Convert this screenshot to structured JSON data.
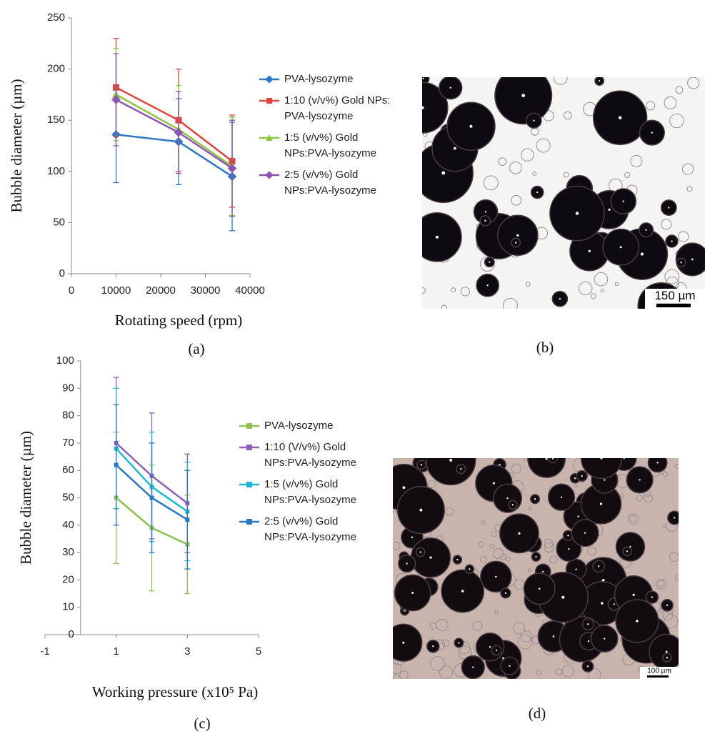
{
  "chart_data": [
    {
      "type": "line",
      "x_label": "Rotating speed (rpm)",
      "y_label": "Bubble diameter (µm)",
      "panel": "(a)",
      "x": [
        10000,
        24000,
        36000
      ],
      "xlim": [
        0,
        40000
      ],
      "xticks": [
        0,
        10000,
        20000,
        30000,
        40000
      ],
      "ylim": [
        0,
        250
      ],
      "yticks": [
        0,
        50,
        100,
        150,
        200,
        250
      ],
      "grid": false,
      "series": [
        {
          "name": "PVA-lysozyme",
          "color": "#2e75c4",
          "marker": "diamond",
          "values": [
            136,
            129,
            95
          ],
          "errors": [
            47,
            42,
            53
          ]
        },
        {
          "name": "1:10 (v/v%) Gold NPs: PVA-lysozyme",
          "color": "#e0443c",
          "marker": "square",
          "values": [
            182,
            150,
            110
          ],
          "errors": [
            48,
            50,
            45
          ]
        },
        {
          "name": "1:5 (v/v%) Gold NPs:PVA-lysozyme",
          "color": "#8cc63f",
          "marker": "triangle",
          "values": [
            175,
            141,
            105
          ],
          "errors": [
            45,
            43,
            48
          ]
        },
        {
          "name": "2:5 (v/v%) Gold NPs:PVA-lysozyme",
          "color": "#8b55b0",
          "marker": "diamond",
          "values": [
            170,
            138,
            103
          ],
          "errors": [
            45,
            40,
            47
          ]
        }
      ]
    },
    {
      "type": "line",
      "x_label": "Working pressure (x10⁵ Pa)",
      "y_label": "Bubble diameter (µm)",
      "panel": "(c)",
      "x": [
        1,
        2,
        3
      ],
      "xlim": [
        -1,
        5
      ],
      "xticks": [
        -1,
        1,
        3,
        5
      ],
      "ylim": [
        0,
        100
      ],
      "yticks": [
        0,
        10,
        20,
        30,
        40,
        50,
        60,
        70,
        80,
        90,
        100
      ],
      "grid": false,
      "series": [
        {
          "name": "PVA-lysozyme",
          "color": "#8cc152",
          "marker": "square",
          "values": [
            50,
            39,
            33
          ],
          "errors": [
            24,
            23,
            18
          ]
        },
        {
          "name": "1:10 (V/v%) Gold NPs:PVA-lysozyme",
          "color": "#8e5fb5",
          "marker": "square",
          "values": [
            70,
            58,
            48
          ],
          "errors": [
            24,
            23,
            18
          ]
        },
        {
          "name": "1:5 (v/v%) Gold NPs:PVA-lysozyme",
          "color": "#1fb8d4",
          "marker": "square",
          "values": [
            68,
            54,
            45
          ],
          "errors": [
            22,
            20,
            18
          ]
        },
        {
          "name": "2:5 (v/v%) Gold NPs:PVA-lysozyme",
          "color": "#2a78c0",
          "marker": "square",
          "values": [
            62,
            50,
            42
          ],
          "errors": [
            22,
            20,
            18
          ]
        }
      ]
    }
  ],
  "images": [
    {
      "panel": "(b)",
      "scale_bar": "150 µm"
    },
    {
      "panel": "(d)",
      "scale_bar": "100 µm"
    }
  ]
}
